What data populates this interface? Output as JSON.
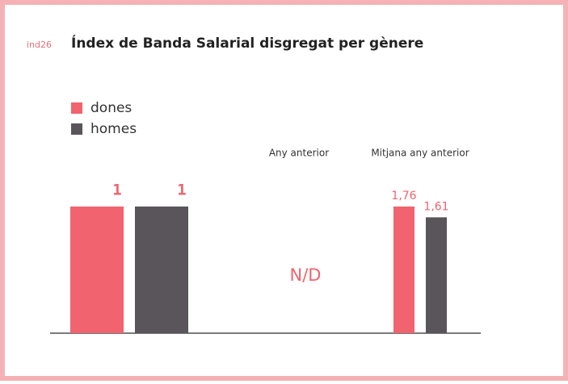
{
  "code": "ind26",
  "chart_data": {
    "type": "bar",
    "title": "Índex de Banda Salarial disgregat per gènere",
    "categories": [
      null,
      "Any anterior",
      "Mitjana any anterior"
    ],
    "series": [
      {
        "name": "dones",
        "color": "#f0636f",
        "values": [
          1,
          null,
          1.76
        ],
        "value_labels": [
          "1",
          null,
          "1,76"
        ]
      },
      {
        "name": "homes",
        "color": "#59555a",
        "values": [
          1,
          null,
          1.61
        ],
        "value_labels": [
          "1",
          null,
          "1,61"
        ]
      }
    ],
    "annotations": [
      {
        "category": 1,
        "text": "N/D"
      }
    ]
  }
}
